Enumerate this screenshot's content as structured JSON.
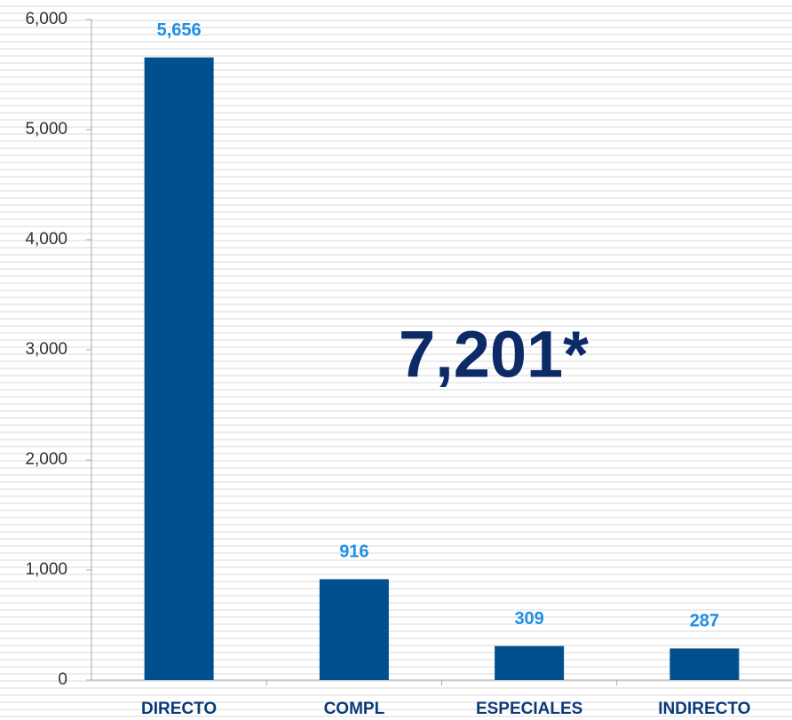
{
  "chart_data": {
    "type": "bar",
    "categories": [
      "DIRECTO",
      "COMPL",
      "ESPECIALES",
      "INDIRECTO"
    ],
    "values": [
      5656,
      916,
      309,
      287
    ],
    "value_labels": [
      "5,656",
      "916",
      "309",
      "287"
    ],
    "color": "#004f8e",
    "value_label_color": "#1f8fe6",
    "ylim": [
      0,
      6000
    ],
    "yticks": [
      0,
      {
        "value": 1000,
        "label": "1,000"
      },
      {
        "value": 2000,
        "label": "2,000"
      },
      {
        "value": 3000,
        "label": "3,000"
      },
      {
        "value": 4000,
        "label": "4,000"
      },
      {
        "value": 5000,
        "label": "5,000"
      },
      {
        "value": 6000,
        "label": "6,000"
      }
    ],
    "annotation": "7,201*"
  }
}
